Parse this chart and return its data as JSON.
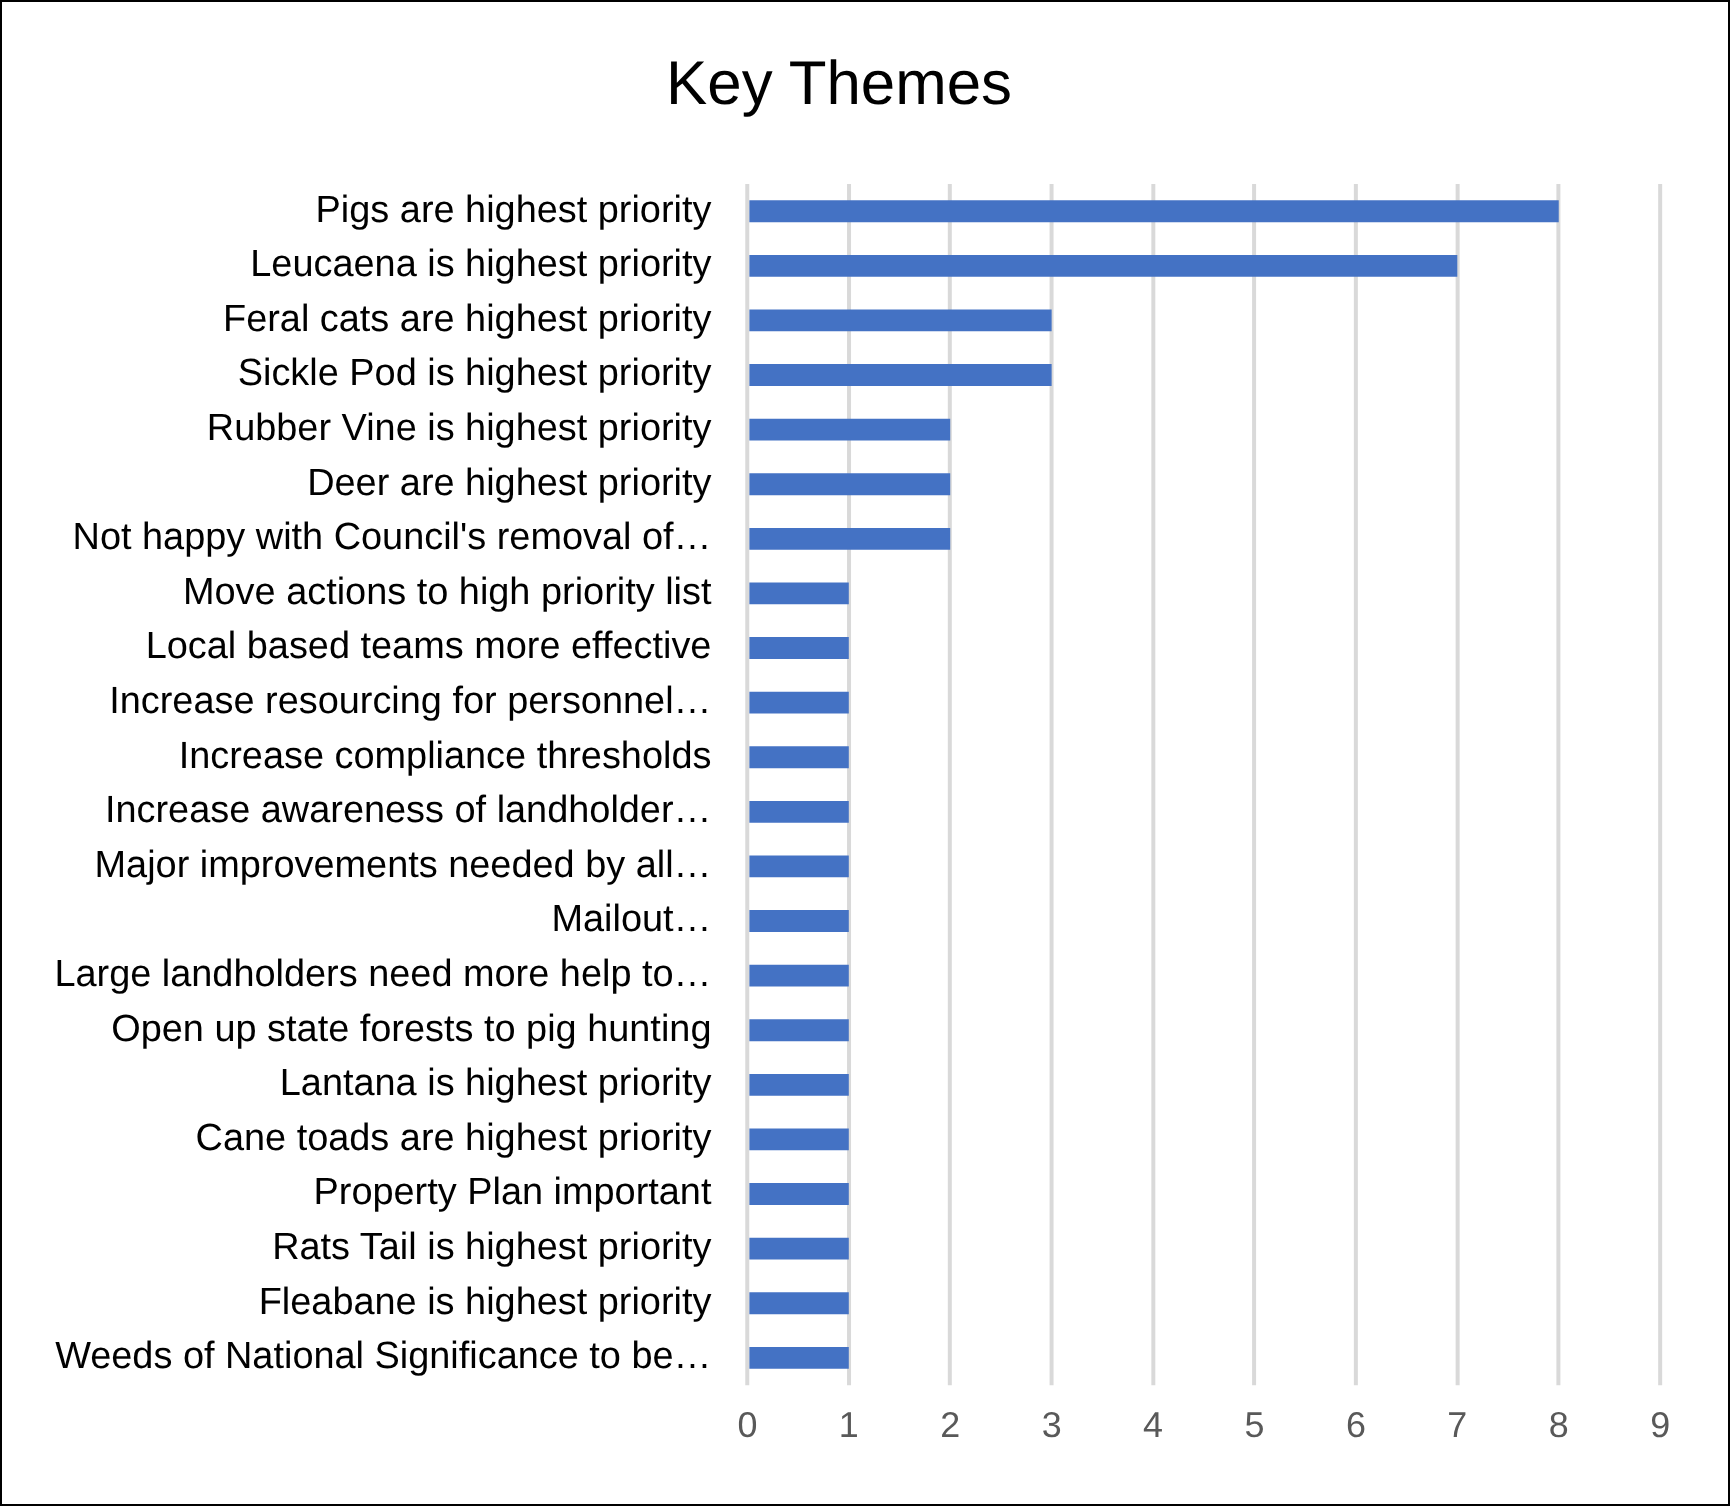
{
  "chart_data": {
    "type": "bar",
    "orientation": "horizontal",
    "title": "Key Themes",
    "categories": [
      "Pigs are highest priority",
      "Leucaena is highest priority",
      "Feral cats are highest priority",
      "Sickle Pod is highest priority",
      "Rubber Vine is highest priority",
      "Deer are highest priority",
      "Not happy with Council's removal of…",
      "Move actions to high priority list",
      "Local based teams more effective",
      "Increase resourcing for personnel…",
      "Increase compliance thresholds",
      "Increase awareness of landholder…",
      "Major improvements needed by all…",
      "Mailout…",
      "Large landholders need more help to…",
      "Open up state forests to pig hunting",
      "Lantana is highest priority",
      "Cane toads are highest priority",
      "Property Plan important",
      "Rats Tail is highest priority",
      "Fleabane is highest priority",
      "Weeds of National Significance to be…"
    ],
    "values": [
      8,
      7,
      3,
      3,
      2,
      2,
      2,
      1,
      1,
      1,
      1,
      1,
      1,
      1,
      1,
      1,
      1,
      1,
      1,
      1,
      1,
      1
    ],
    "color": "#4472c4",
    "xlim": [
      0,
      9
    ],
    "xticks": [
      0,
      1,
      2,
      3,
      4,
      5,
      6,
      7,
      8,
      9
    ],
    "grid": "x"
  }
}
